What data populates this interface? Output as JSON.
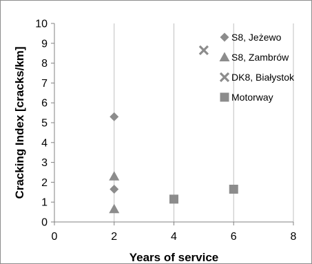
{
  "chart_data": {
    "type": "scatter",
    "xlabel": "Years of service",
    "ylabel": "Cracking Index [cracks/km]",
    "xlim": [
      0,
      8
    ],
    "ylim": [
      0,
      10
    ],
    "xticks": [
      "0",
      "2",
      "4",
      "6",
      "8"
    ],
    "yticks": [
      "0",
      "1",
      "2",
      "3",
      "4",
      "5",
      "6",
      "7",
      "8",
      "9",
      "10"
    ],
    "grid": "vertical",
    "legend_position": "top-right",
    "series": [
      {
        "name": "S8, Jeżewo",
        "marker": "diamond",
        "color": "#8c8c8c",
        "points": [
          {
            "x": 2,
            "y": 5.3
          },
          {
            "x": 2,
            "y": 1.65
          }
        ]
      },
      {
        "name": "S8, Zambrów",
        "marker": "triangle",
        "color": "#8c8c8c",
        "points": [
          {
            "x": 2,
            "y": 2.3
          },
          {
            "x": 2,
            "y": 0.65
          }
        ]
      },
      {
        "name": "DK8, Białystok",
        "marker": "cross",
        "color": "#8c8c8c",
        "points": [
          {
            "x": 5,
            "y": 8.65
          }
        ]
      },
      {
        "name": "Motorway",
        "marker": "square",
        "color": "#8c8c8c",
        "points": [
          {
            "x": 4,
            "y": 1.15
          },
          {
            "x": 6,
            "y": 1.65
          }
        ]
      }
    ]
  }
}
